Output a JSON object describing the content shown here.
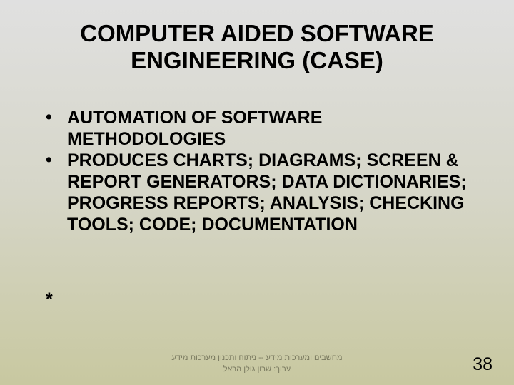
{
  "title": {
    "line1": "COMPUTER AIDED SOFTWARE",
    "line2": "ENGINEERING (CASE)",
    "fontsize": 33,
    "color": "#000000"
  },
  "bullets": {
    "fontsize": 25,
    "color": "#000000",
    "items": [
      {
        "text": "AUTOMATION OF SOFTWARE METHODOLOGIES"
      },
      {
        "text": "PRODUCES CHARTS; DIAGRAMS; SCREEN & REPORT GENERATORS;     DATA DICTIONARIES; PROGRESS REPORTS; ANALYSIS; CHECKING TOOLS; CODE; DOCUMENTATION"
      }
    ]
  },
  "asterisk": {
    "text": "*",
    "fontsize": 25
  },
  "footer": {
    "line1": "מחשבים ומערכות מידע  --  ניתוח ותכנון מערכות מידע",
    "line2": "ערוך: שרון גולן הראל",
    "fontsize": 11,
    "color": "#7a7a60"
  },
  "page": {
    "number": "38",
    "fontsize": 25,
    "color": "#000000"
  },
  "background": {
    "top_color": "#e0e0e0",
    "bottom_color": "#c8c8a0"
  }
}
